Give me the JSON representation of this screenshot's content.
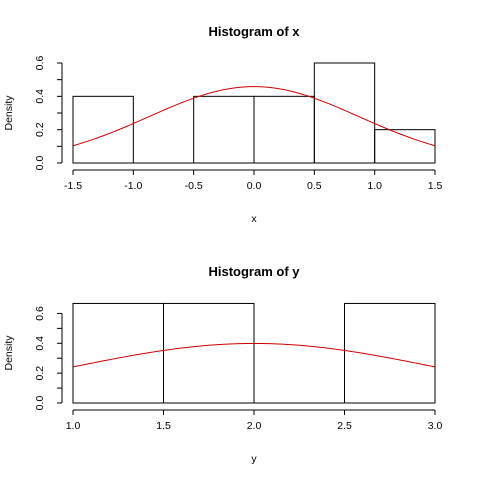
{
  "colors": {
    "bars": "#000000",
    "curve": "#cc0000",
    "background": "#ffffff"
  },
  "chart_data": [
    {
      "type": "bar",
      "title": "Histogram of x",
      "xlabel": "x",
      "ylabel": "Density",
      "xlim": [
        -1.5,
        1.5
      ],
      "ylim": [
        0,
        0.6
      ],
      "xticks": [
        "-1.5",
        "-1.0",
        "-0.5",
        "0.0",
        "0.5",
        "1.0",
        "1.5"
      ],
      "yticks": [
        "0.0",
        "0.2",
        "0.4",
        "0.6"
      ],
      "bins": [
        {
          "x0": -1.5,
          "x1": -1.0,
          "density": 0.4
        },
        {
          "x0": -1.0,
          "x1": -0.5,
          "density": 0.0
        },
        {
          "x0": -0.5,
          "x1": 0.0,
          "density": 0.4
        },
        {
          "x0": 0.0,
          "x1": 0.5,
          "density": 0.4
        },
        {
          "x0": 0.5,
          "x1": 1.0,
          "density": 0.6
        },
        {
          "x0": 1.0,
          "x1": 1.5,
          "density": 0.2
        }
      ],
      "curve": {
        "kind": "normal_density",
        "mean": 0.0,
        "sd": 0.87
      }
    },
    {
      "type": "bar",
      "title": "Histogram of y",
      "xlabel": "y",
      "ylabel": "Density",
      "xlim": [
        1.0,
        3.0
      ],
      "ylim": [
        0,
        0.67
      ],
      "xticks": [
        "1.0",
        "1.5",
        "2.0",
        "2.5",
        "3.0"
      ],
      "yticks": [
        "0.0",
        "0.2",
        "0.4",
        "0.6"
      ],
      "bins": [
        {
          "x0": 1.0,
          "x1": 1.5,
          "density": 0.667
        },
        {
          "x0": 1.5,
          "x1": 2.0,
          "density": 0.667
        },
        {
          "x0": 2.0,
          "x1": 2.5,
          "density": 0.0
        },
        {
          "x0": 2.5,
          "x1": 3.0,
          "density": 0.667
        }
      ],
      "curve": {
        "kind": "normal_density",
        "mean": 2.0,
        "sd": 1.0
      }
    }
  ]
}
